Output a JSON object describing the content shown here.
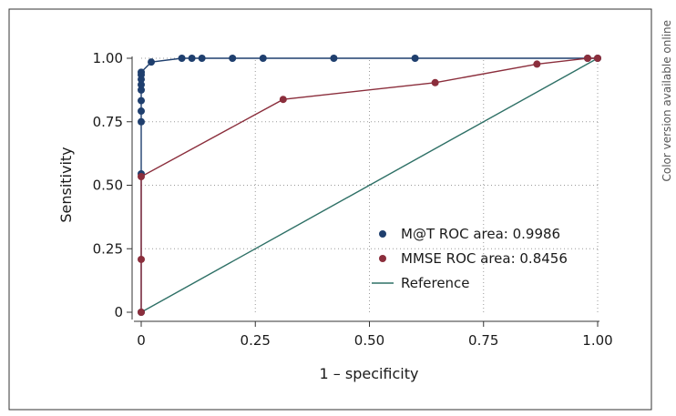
{
  "chart_data": {
    "type": "line",
    "title": "",
    "xlabel": "1 – specificity",
    "ylabel": "Sensitivity",
    "xlim": [
      0,
      1
    ],
    "ylim": [
      0,
      1
    ],
    "xticks": [
      0,
      0.25,
      0.5,
      0.75,
      1
    ],
    "xtick_labels": [
      "0",
      "0.25",
      "0.50",
      "0.75",
      "1.00"
    ],
    "yticks": [
      0,
      0.25,
      0.5,
      0.75,
      1
    ],
    "ytick_labels": [
      "0",
      "0.25",
      "0.50",
      "0.75",
      "1.00"
    ],
    "grid": true,
    "legend_position": "bottom-right",
    "series": [
      {
        "name": "M@T ROC area: 0.9986",
        "color": "#1f3f6e",
        "markers": true,
        "x": [
          0,
          0,
          0,
          0,
          0,
          0,
          0,
          0,
          0,
          0,
          0.022,
          0.089,
          0.111,
          0.133,
          0.2,
          0.267,
          0.422,
          0.6,
          0.978,
          1.0
        ],
        "y": [
          0,
          0.545,
          0.75,
          0.792,
          0.833,
          0.875,
          0.896,
          0.917,
          0.935,
          0.945,
          0.985,
          1,
          1,
          1,
          1,
          1,
          1,
          1,
          1,
          1
        ]
      },
      {
        "name": "MMSE ROC area: 0.8456",
        "color": "#8b2e3c",
        "markers": true,
        "x": [
          0,
          0,
          0,
          0.311,
          0.644,
          0.867,
          0.978,
          1.0
        ],
        "y": [
          0,
          0.208,
          0.534,
          0.838,
          0.904,
          0.977,
          1,
          1
        ]
      },
      {
        "name": "Reference",
        "color": "#2e7066",
        "markers": false,
        "x": [
          0,
          1
        ],
        "y": [
          0,
          1
        ]
      }
    ]
  },
  "side_note": "Color version available online"
}
